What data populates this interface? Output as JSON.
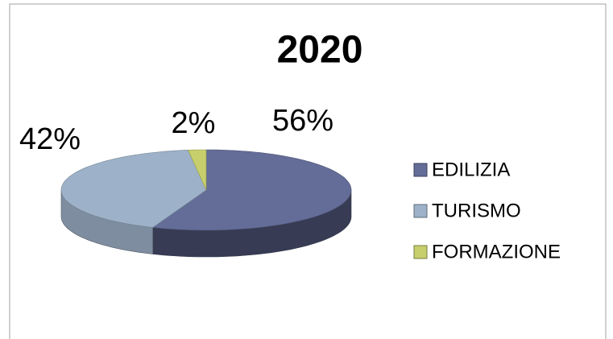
{
  "chart_data": {
    "type": "pie3d",
    "title": "2020",
    "categories": [
      "EDILIZIA",
      "TURISMO",
      "FORMAZIONE"
    ],
    "values": [
      56,
      42,
      2
    ],
    "value_labels": [
      "56%",
      "42%",
      "2%"
    ],
    "colors": [
      "#646d98",
      "#9db2c8",
      "#c6cf6c"
    ],
    "legend": "right"
  }
}
